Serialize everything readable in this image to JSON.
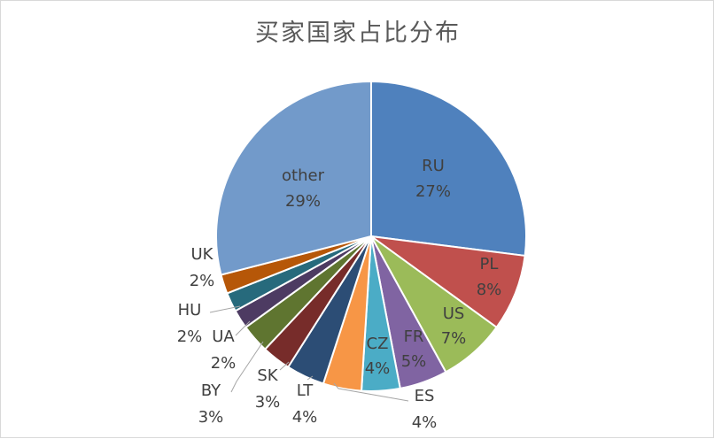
{
  "chart_data": {
    "type": "pie",
    "title": "买家国家占比分布",
    "start_angle_deg": 0,
    "direction": "clockwise",
    "slices": [
      {
        "label": "RU",
        "value": 27,
        "display": "27%",
        "color": "#4F81BD"
      },
      {
        "label": "PL",
        "value": 8,
        "display": "8%",
        "color": "#C0504D"
      },
      {
        "label": "US",
        "value": 7,
        "display": "7%",
        "color": "#9BBB59"
      },
      {
        "label": "FR",
        "value": 5,
        "display": "5%",
        "color": "#8064A2"
      },
      {
        "label": "CZ",
        "value": 4,
        "display": "4%",
        "color": "#4BACC6"
      },
      {
        "label": "ES",
        "value": 4,
        "display": "4%",
        "color": "#F79646"
      },
      {
        "label": "LT",
        "value": 4,
        "display": "4%",
        "color": "#2C4D75"
      },
      {
        "label": "SK",
        "value": 3,
        "display": "3%",
        "color": "#772C2A"
      },
      {
        "label": "BY",
        "value": 3,
        "display": "3%",
        "color": "#5F7530"
      },
      {
        "label": "UA",
        "value": 2,
        "display": "2%",
        "color": "#4D3B62"
      },
      {
        "label": "HU",
        "value": 2,
        "display": "2%",
        "color": "#276A7C"
      },
      {
        "label": "UK",
        "value": 2,
        "display": "2%",
        "color": "#B65708"
      },
      {
        "label": "other",
        "value": 29,
        "display": "29%",
        "color": "#729ACA"
      }
    ]
  }
}
